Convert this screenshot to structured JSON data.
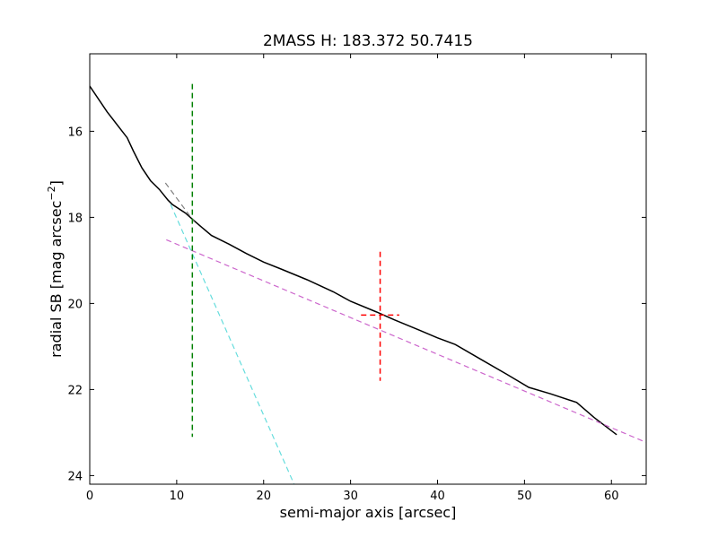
{
  "chart_data": {
    "type": "line",
    "title": "2MASS H: 183.372 50.7415",
    "xlabel": "semi-major axis [arcsec]",
    "ylabel": "radial SB [mag arcsec",
    "ylabel_sup": "−2",
    "ylabel_close": "]",
    "xlim": [
      0,
      64
    ],
    "ylim": [
      24.2,
      14.2
    ],
    "y_inverted": true,
    "x_ticks": [
      0,
      10,
      20,
      30,
      40,
      50,
      60
    ],
    "y_ticks": [
      16,
      18,
      20,
      22,
      24
    ],
    "grid": false,
    "series": [
      {
        "color": "#000000",
        "dash": "solid",
        "x": [
          0,
          2,
          4.3,
          5,
          6,
          7,
          8,
          9,
          9.5,
          11,
          12,
          13,
          14,
          16,
          18,
          20,
          22,
          25,
          28,
          30,
          33,
          35,
          38,
          40,
          42,
          45,
          48,
          50.5,
          53,
          56,
          58,
          60.6
        ],
        "y": [
          14.95,
          15.55,
          16.15,
          16.45,
          16.85,
          17.15,
          17.35,
          17.6,
          17.7,
          17.9,
          18.08,
          18.25,
          18.42,
          18.62,
          18.84,
          19.04,
          19.2,
          19.45,
          19.73,
          19.95,
          20.2,
          20.38,
          20.63,
          20.8,
          20.95,
          21.3,
          21.65,
          21.95,
          22.1,
          22.3,
          22.65,
          23.05
        ]
      },
      {
        "color": "#808080",
        "dash": "dashed",
        "x": [
          8.7,
          12
        ],
        "y": [
          17.2,
          18.1
        ]
      },
      {
        "color": "#66dddd",
        "dash": "dashed",
        "x": [
          9.3,
          23.5
        ],
        "y": [
          17.7,
          24.2
        ]
      },
      {
        "color": "#cc66cc",
        "dash": "dashed",
        "x": [
          8.8,
          64
        ],
        "y": [
          18.52,
          23.23
        ]
      }
    ],
    "markers": {
      "vline_green": {
        "color": "#008000",
        "x": 11.8,
        "y_range": [
          14.9,
          23.1
        ]
      },
      "cross_red": {
        "color": "#ff0000",
        "x": 33.4,
        "y": 20.27,
        "x_range": [
          31.2,
          35.6
        ],
        "y_range": [
          18.8,
          21.8
        ]
      }
    }
  }
}
